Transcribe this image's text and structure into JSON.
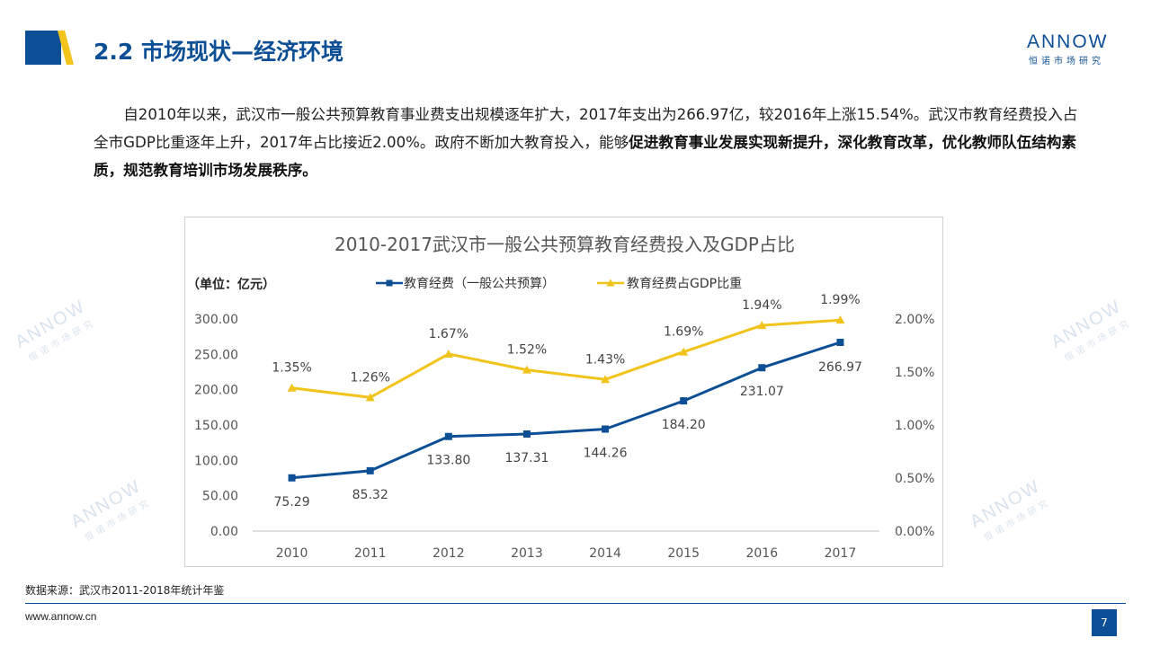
{
  "header": {
    "title": "2.2 市场现状—经济环境"
  },
  "brand": {
    "name": "ANNOW",
    "sub": "恒诺市场研究"
  },
  "intro": {
    "plain": "自2010年以来，武汉市一般公共预算教育事业费支出规模逐年扩大，2017年支出为266.97亿，较2016年上涨15.54%。武汉市教育经费投入占全市GDP比重逐年上升，2017年占比接近2.00%。政府不断加大教育投入，能够",
    "bold": "促进教育事业发展实现新提升，深化教育改革，优化教师队伍结构素质，规范教育培训市场发展秩序。"
  },
  "colors": {
    "brand_blue": "#0d4f95",
    "spending_series": "#0d4f95",
    "ratio_series": "#f2c31b",
    "accent_yellow": "#f2c31b",
    "grid_line": "#d9d9d9"
  },
  "chart_data": {
    "type": "line",
    "title": "2010-2017武汉市一般公共预算教育经费投入及GDP占比",
    "unit_label": "（单位：亿元）",
    "categories": [
      "2010",
      "2011",
      "2012",
      "2013",
      "2014",
      "2015",
      "2016",
      "2017"
    ],
    "series": [
      {
        "name": "教育经费（一般公共预算）",
        "axis": "left",
        "marker": "square",
        "color": "#0d4f95",
        "values": [
          75.29,
          85.32,
          133.8,
          137.31,
          144.26,
          184.2,
          231.07,
          266.97
        ],
        "labels": [
          "75.29",
          "85.32",
          "133.80",
          "137.31",
          "144.26",
          "184.20",
          "231.07",
          "266.97"
        ]
      },
      {
        "name": "教育经费占GDP比重",
        "axis": "right",
        "marker": "triangle",
        "color": "#f2c31b",
        "values": [
          1.35,
          1.26,
          1.67,
          1.52,
          1.43,
          1.69,
          1.94,
          1.99
        ],
        "labels": [
          "1.35%",
          "1.26%",
          "1.67%",
          "1.52%",
          "1.43%",
          "1.69%",
          "1.94%",
          "1.99%"
        ]
      }
    ],
    "y_left": {
      "range": [
        0,
        300
      ],
      "ticks": [
        0,
        50,
        100,
        150,
        200,
        250,
        300
      ],
      "tick_labels": [
        "0.00",
        "50.00",
        "100.00",
        "150.00",
        "200.00",
        "250.00",
        "300.00"
      ]
    },
    "y_right": {
      "range": [
        0,
        2.0
      ],
      "ticks": [
        0,
        0.5,
        1.0,
        1.5,
        2.0
      ],
      "tick_labels": [
        "0.00%",
        "0.50%",
        "1.00%",
        "1.50%",
        "2.00%"
      ]
    },
    "grid": false,
    "legend": "top"
  },
  "source": {
    "text": "数据来源：武汉市2011-2018年统计年鉴"
  },
  "footer": {
    "site": "www.annow.cn",
    "page": "7"
  }
}
